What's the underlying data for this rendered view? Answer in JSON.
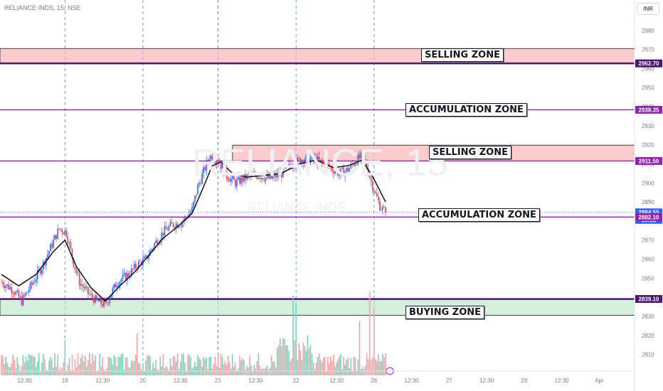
{
  "header": {
    "symbol_label": "RELIANCE INDS, 15, NSE",
    "currency_button": "INR"
  },
  "watermark": {
    "symbol": "RELIANCE, 15",
    "name": "RELIANCE INDS"
  },
  "zones": [
    {
      "label": "SELLING ZONE",
      "low": 2962.7,
      "high": 2970.5,
      "color": "#f8a8ac"
    },
    {
      "label": "ACCUMULATION ZONE",
      "price": 2938.35
    },
    {
      "label": "SELLING ZONE",
      "low": 2911.5,
      "high": 2919.8,
      "color": "#f8a8ac"
    },
    {
      "label": "ACCUMULATION ZONE",
      "price": 2882.1
    },
    {
      "label": "BUYING ZONE",
      "low": 2830.5,
      "high": 2839.1,
      "color": "#b9e6c2"
    }
  ],
  "price_tags": [
    {
      "label": "2962.70",
      "price": 2962.7,
      "color": "#4a1670"
    },
    {
      "label": "2938.35",
      "price": 2938.35,
      "color": "#8e24aa"
    },
    {
      "label": "2911.50",
      "price": 2911.5,
      "color": "#8e24aa"
    },
    {
      "label": "2884.55",
      "price": 2884.55,
      "color": "#2962ff"
    },
    {
      "label": "03:58",
      "price": 2880.6,
      "color": "#2962ff"
    },
    {
      "label": "2882.10",
      "price": 2882.1,
      "color": "#8e24aa"
    },
    {
      "label": "2839.10",
      "price": 2839.1,
      "color": "#4a1670"
    }
  ],
  "colors": {
    "up": "#2962ff",
    "down": "#f23645",
    "vol_up": "#7fcdbb",
    "vol_down": "#f7a1a4",
    "ma": "#000000",
    "session_line": "#2962ff"
  },
  "chart_data": {
    "type": "candlestick",
    "title": "RELIANCE INDS, 15, NSE",
    "ylim": [
      2805,
      2987
    ],
    "y_ticks": [
      2810,
      2820,
      2830,
      2840,
      2850,
      2860,
      2870,
      2880,
      2890,
      2900,
      2910,
      2920,
      2930,
      2940,
      2950,
      2960,
      2970,
      2980
    ],
    "x_ticks": [
      "12:30",
      "19",
      "12:30",
      "20",
      "12:30",
      "21",
      "12:30",
      "22",
      "12:30",
      "26",
      "12:30",
      "27",
      "12:30",
      "28",
      "12:30",
      "Apr"
    ],
    "session_starts": [
      "19",
      "20",
      "21",
      "22",
      "26"
    ],
    "close_path": [
      [
        0,
        2848
      ],
      [
        8,
        2844
      ],
      [
        14,
        2838
      ],
      [
        22,
        2848
      ],
      [
        28,
        2856
      ],
      [
        34,
        2866
      ],
      [
        40,
        2876
      ],
      [
        45,
        2874
      ],
      [
        50,
        2858
      ],
      [
        54,
        2848
      ],
      [
        60,
        2842
      ],
      [
        66,
        2838
      ],
      [
        72,
        2836
      ],
      [
        80,
        2848
      ],
      [
        88,
        2852
      ],
      [
        94,
        2857
      ],
      [
        100,
        2860
      ],
      [
        106,
        2868
      ],
      [
        112,
        2874
      ],
      [
        118,
        2878
      ],
      [
        124,
        2879
      ],
      [
        128,
        2882
      ],
      [
        132,
        2886
      ],
      [
        136,
        2898
      ],
      [
        140,
        2906
      ],
      [
        144,
        2914
      ],
      [
        150,
        2912
      ],
      [
        156,
        2904
      ],
      [
        162,
        2900
      ],
      [
        170,
        2903
      ],
      [
        178,
        2904
      ],
      [
        186,
        2902
      ],
      [
        194,
        2905
      ],
      [
        202,
        2910
      ],
      [
        210,
        2913
      ],
      [
        218,
        2912
      ],
      [
        226,
        2909
      ],
      [
        234,
        2905
      ],
      [
        240,
        2907
      ],
      [
        246,
        2912
      ],
      [
        250,
        2914
      ],
      [
        254,
        2906
      ],
      [
        258,
        2896
      ],
      [
        262,
        2888
      ],
      [
        266,
        2884.55
      ]
    ],
    "moving_average": {
      "points": [
        [
          0,
          2852
        ],
        [
          12,
          2846
        ],
        [
          24,
          2852
        ],
        [
          36,
          2864
        ],
        [
          44,
          2870
        ],
        [
          52,
          2856
        ],
        [
          62,
          2845
        ],
        [
          72,
          2838
        ],
        [
          82,
          2846
        ],
        [
          92,
          2853
        ],
        [
          102,
          2862
        ],
        [
          112,
          2871
        ],
        [
          122,
          2877
        ],
        [
          132,
          2884
        ],
        [
          140,
          2898
        ],
        [
          146,
          2909
        ],
        [
          152,
          2911
        ],
        [
          160,
          2905
        ],
        [
          170,
          2903
        ],
        [
          182,
          2904
        ],
        [
          194,
          2905
        ],
        [
          206,
          2910
        ],
        [
          218,
          2912
        ],
        [
          230,
          2908
        ],
        [
          240,
          2909
        ],
        [
          250,
          2912
        ],
        [
          258,
          2902
        ],
        [
          266,
          2890
        ]
      ]
    },
    "volume_spikes": [
      {
        "i": 202,
        "rel": 0.95
      },
      {
        "i": 204,
        "rel": 0.85
      },
      {
        "i": 248,
        "rel": 0.65
      },
      {
        "i": 255,
        "rel": 1.0
      },
      {
        "i": 258,
        "rel": 0.8
      },
      {
        "i": 94,
        "rel": 0.5
      },
      {
        "i": 44,
        "rel": 0.42
      },
      {
        "i": 212,
        "rel": 0.48
      }
    ]
  }
}
